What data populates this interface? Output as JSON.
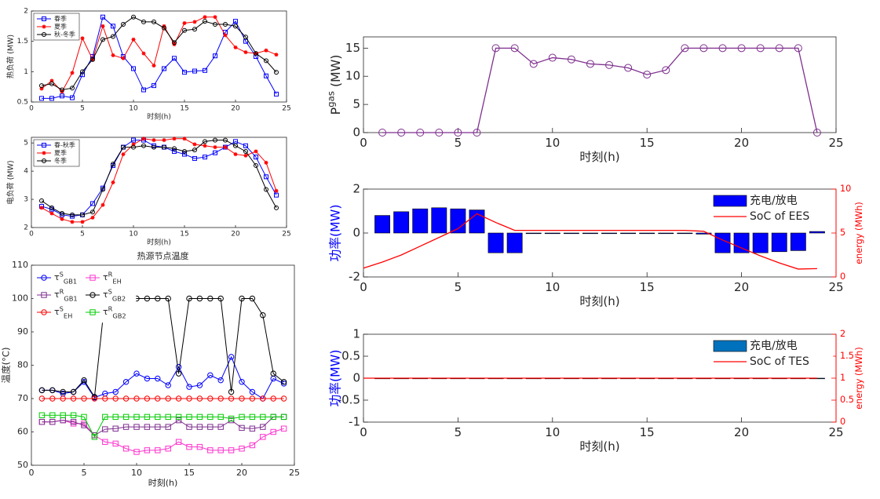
{
  "chart_data": [
    {
      "type": "line",
      "ylabel": "热负荷 (MW)",
      "xlabel": "时刻(h)",
      "xlim": [
        0,
        25
      ],
      "xticks": [
        0,
        5,
        10,
        15,
        20,
        25
      ],
      "ylim": [
        0.5,
        2
      ],
      "yticks": [
        0.5,
        1,
        1.5,
        2
      ],
      "legend": "upper left",
      "legend_columns": 1,
      "x": [
        1,
        2,
        3,
        4,
        5,
        6,
        7,
        8,
        9,
        10,
        11,
        12,
        13,
        14,
        15,
        16,
        17,
        18,
        19,
        20,
        21,
        22,
        23,
        24
      ],
      "series": [
        {
          "name": "春季",
          "color": "#0000ff",
          "marker": "square",
          "values": [
            0.56,
            0.56,
            0.6,
            0.57,
            0.95,
            1.25,
            1.9,
            1.75,
            1.25,
            1.05,
            0.7,
            0.77,
            1.05,
            1.22,
            0.99,
            1.01,
            1.02,
            1.26,
            1.65,
            1.83,
            1.5,
            1.25,
            0.93,
            0.63
          ]
        },
        {
          "name": "夏季",
          "color": "#ff0000",
          "marker": "star",
          "values": [
            0.72,
            0.85,
            0.67,
            0.98,
            1.55,
            1.2,
            1.75,
            1.27,
            1.22,
            1.53,
            1.3,
            1.1,
            1.75,
            1.45,
            1.8,
            1.82,
            1.9,
            1.9,
            1.6,
            1.4,
            1.32,
            1.3,
            1.35,
            1.28
          ]
        },
        {
          "name": "秋-冬季",
          "color": "#000000",
          "marker": "circle",
          "values": [
            0.77,
            0.8,
            0.7,
            0.73,
            1.0,
            1.2,
            1.53,
            1.58,
            1.78,
            1.9,
            1.82,
            1.82,
            1.72,
            1.48,
            1.68,
            1.7,
            1.83,
            1.78,
            1.78,
            1.75,
            1.57,
            1.3,
            1.18,
            0.99
          ]
        }
      ]
    },
    {
      "type": "line",
      "ylabel": "电负荷 (MW)",
      "xlabel": "时刻(h)",
      "xlim": [
        0,
        25
      ],
      "xticks": [
        0,
        5,
        10,
        15,
        20,
        25
      ],
      "ylim": [
        2,
        5.2
      ],
      "yticks": [
        2,
        3,
        4,
        5
      ],
      "legend": "upper left",
      "legend_columns": 1,
      "x": [
        1,
        2,
        3,
        4,
        5,
        6,
        7,
        8,
        9,
        10,
        11,
        12,
        13,
        14,
        15,
        16,
        17,
        18,
        19,
        20,
        21,
        22,
        23,
        24
      ],
      "series": [
        {
          "name": "春-秋季",
          "color": "#0000ff",
          "marker": "square",
          "values": [
            2.75,
            2.65,
            2.45,
            2.4,
            2.45,
            2.85,
            3.4,
            4.2,
            4.85,
            5.1,
            5.1,
            4.9,
            4.85,
            4.7,
            4.6,
            4.45,
            4.5,
            4.65,
            4.85,
            5.05,
            4.9,
            4.5,
            3.8,
            3.15
          ]
        },
        {
          "name": "夏季",
          "color": "#ff0000",
          "marker": "star",
          "values": [
            2.7,
            2.5,
            2.3,
            2.2,
            2.2,
            2.35,
            2.8,
            3.6,
            4.6,
            4.95,
            5.15,
            5.1,
            5.1,
            5.15,
            5.15,
            4.95,
            4.9,
            4.85,
            4.85,
            4.6,
            4.55,
            4.7,
            4.3,
            3.3
          ]
        },
        {
          "name": "冬季",
          "color": "#000000",
          "marker": "circle",
          "values": [
            2.95,
            2.7,
            2.5,
            2.45,
            2.45,
            2.55,
            3.35,
            4.25,
            4.85,
            4.85,
            4.9,
            4.85,
            4.85,
            4.8,
            4.7,
            4.75,
            5.05,
            5.1,
            5.1,
            4.9,
            4.7,
            4.2,
            3.35,
            2.7
          ]
        }
      ]
    },
    {
      "type": "line",
      "title": "热源节点温度",
      "ylabel": "温度(°C)",
      "xlabel": "时刻(h)",
      "xlim": [
        0,
        25
      ],
      "xticks": [
        0,
        5,
        10,
        15,
        20,
        25
      ],
      "ylim": [
        50,
        110
      ],
      "yticks": [
        50,
        60,
        70,
        80,
        90,
        100,
        110
      ],
      "legend": "upper left",
      "legend_columns": 2,
      "x": [
        1,
        2,
        3,
        4,
        5,
        6,
        7,
        8,
        9,
        10,
        11,
        12,
        13,
        14,
        15,
        16,
        17,
        18,
        19,
        20,
        21,
        22,
        23,
        24
      ],
      "series": [
        {
          "name": "τ^S_GB1",
          "color": "#0000ff",
          "marker": "circle",
          "values": [
            72.5,
            72.5,
            71.5,
            72,
            75,
            70.3,
            71.5,
            72,
            75,
            77.5,
            76,
            76,
            74,
            79.5,
            73.5,
            74,
            77,
            75.5,
            82.5,
            75,
            72,
            70,
            76,
            74.5
          ]
        },
        {
          "name": "τ^R_EH",
          "color": "#ff33cc",
          "marker": "square",
          "values": [
            63,
            63,
            63.5,
            62.5,
            62.5,
            59,
            57,
            56.5,
            55,
            54,
            54.5,
            54.5,
            55,
            57,
            55.5,
            55.5,
            54.5,
            54.5,
            54.5,
            55,
            56,
            58.5,
            60,
            61
          ]
        },
        {
          "name": "τ^R_GB1",
          "color": "#7e2f8e",
          "marker": "square",
          "values": [
            63,
            63,
            63.5,
            63,
            62,
            59,
            60.8,
            61,
            61.5,
            61.5,
            61.5,
            61.5,
            61.5,
            63.5,
            61.5,
            61.5,
            61.5,
            61.5,
            63.5,
            61.2,
            61,
            61.5,
            64.5,
            64.5
          ]
        },
        {
          "name": "τ^S_GB2",
          "color": "#000000",
          "marker": "circle",
          "values": [
            72.5,
            72.5,
            72,
            72,
            75.5,
            70.5,
            100,
            100,
            100,
            100,
            100,
            100,
            100,
            77.5,
            100,
            100,
            100,
            100,
            72,
            100,
            100,
            95,
            77.5,
            75
          ]
        },
        {
          "name": "τ^S_EH",
          "color": "#ff0000",
          "marker": "circle",
          "values": [
            70,
            70,
            70,
            70,
            70,
            70,
            70,
            70,
            70,
            70,
            70,
            70,
            70,
            70,
            70,
            70,
            70,
            70,
            70,
            70,
            70,
            70,
            70,
            70
          ]
        },
        {
          "name": "τ^R_GB2",
          "color": "#00cc00",
          "marker": "square",
          "values": [
            65,
            65,
            65,
            65,
            64.5,
            58.5,
            64.5,
            64.5,
            64.5,
            64.5,
            64.5,
            64.5,
            64.5,
            64.5,
            64.5,
            64.5,
            64.5,
            64.5,
            64,
            64.5,
            64.5,
            64.5,
            64.5,
            64.5
          ]
        }
      ]
    },
    {
      "type": "line",
      "ylabel": "P^gas (MW)",
      "xlabel": "时刻(h)",
      "xlim": [
        0,
        25
      ],
      "xticks": [
        0,
        5,
        10,
        15,
        20,
        25
      ],
      "ylim": [
        0,
        17
      ],
      "yticks": [
        0,
        5,
        10,
        15
      ],
      "x": [
        1,
        2,
        3,
        4,
        5,
        6,
        7,
        8,
        9,
        10,
        11,
        12,
        13,
        14,
        15,
        16,
        17,
        18,
        19,
        20,
        21,
        22,
        23,
        24
      ],
      "series": [
        {
          "color": "#7e2f8e",
          "marker": "circle",
          "values": [
            0,
            0,
            0,
            0,
            0,
            0,
            15,
            15,
            12.2,
            13.3,
            13,
            12.2,
            12,
            11.5,
            10.3,
            11.1,
            15,
            15,
            15,
            15,
            15,
            15,
            15,
            0
          ]
        }
      ]
    },
    {
      "type": "bar",
      "ylabel": "功率(MW)",
      "ylabel_color": "#0000ff",
      "xlabel": "时刻(h)",
      "y2label": "energy (MWh)",
      "y2_color": "#ff0000",
      "xlim": [
        0,
        25
      ],
      "xticks": [
        0,
        5,
        10,
        15,
        20,
        25
      ],
      "ylim": [
        -2,
        2
      ],
      "yticks": [
        -2,
        0,
        2
      ],
      "y2lim": [
        0,
        10
      ],
      "y2ticks": [
        0,
        5,
        10
      ],
      "legend": "upper right",
      "series": [
        {
          "name": "充电/放电",
          "type": "bar",
          "color": "#0000ff",
          "x": [
            1,
            2,
            3,
            4,
            5,
            6,
            7,
            8,
            9,
            10,
            11,
            12,
            13,
            14,
            15,
            16,
            17,
            18,
            19,
            20,
            21,
            22,
            23,
            24
          ],
          "values": [
            0.8,
            0.97,
            1.1,
            1.15,
            1.1,
            1.05,
            -0.9,
            -0.9,
            0,
            0,
            0,
            0,
            0,
            0,
            0,
            0,
            0,
            -0.05,
            -0.9,
            -0.9,
            -0.9,
            -0.85,
            -0.8,
            0.07
          ]
        },
        {
          "name": "SoC of EES",
          "type": "line",
          "axis": "y2",
          "color": "#ff0000",
          "x": [
            0,
            1,
            2,
            3,
            4,
            5,
            6,
            7,
            8,
            9,
            10,
            11,
            12,
            13,
            14,
            15,
            16,
            17,
            18,
            19,
            20,
            21,
            22,
            23,
            24
          ],
          "values": [
            1,
            1.7,
            2.5,
            3.5,
            4.5,
            5.5,
            7.2,
            6.2,
            5.3,
            5.3,
            5.3,
            5.3,
            5.3,
            5.3,
            5.3,
            5.3,
            5.3,
            5.3,
            5.2,
            4.2,
            3.3,
            2.4,
            1.6,
            0.9,
            0.95
          ]
        }
      ]
    },
    {
      "type": "bar",
      "ylabel": "功率(MW)",
      "ylabel_color": "#0000ff",
      "xlabel": "时刻(h)",
      "y2label": "energy (MWh)",
      "y2_color": "#ff0000",
      "xlim": [
        0,
        25
      ],
      "xticks": [
        0,
        5,
        10,
        15,
        20,
        25
      ],
      "ylim": [
        -1,
        1
      ],
      "yticks": [
        -1,
        -0.5,
        0,
        0.5,
        1
      ],
      "y2lim": [
        0,
        2
      ],
      "y2ticks": [
        0,
        0.5,
        1,
        1.5,
        2
      ],
      "legend": "upper right",
      "series": [
        {
          "name": "充电/放电",
          "type": "bar",
          "color": "#0072bd",
          "x": [
            1,
            2,
            3,
            4,
            5,
            6,
            7,
            8,
            9,
            10,
            11,
            12,
            13,
            14,
            15,
            16,
            17,
            18,
            19,
            20,
            21,
            22,
            23,
            24
          ],
          "values": [
            0,
            0,
            0,
            0,
            0,
            0,
            0,
            0,
            0,
            0,
            0,
            0,
            0,
            0,
            0,
            0,
            0,
            0,
            0,
            0,
            0,
            0,
            0,
            0
          ]
        },
        {
          "name": "SoC of TES",
          "type": "line",
          "axis": "y2",
          "color": "#ff0000",
          "x": [
            0,
            1,
            2,
            3,
            4,
            5,
            6,
            7,
            8,
            9,
            10,
            11,
            12,
            13,
            14,
            15,
            16,
            17,
            18,
            19,
            20,
            21,
            22,
            23,
            24
          ],
          "values": [
            1,
            1,
            1,
            1,
            1,
            1,
            1,
            1,
            1,
            1,
            1,
            1,
            1,
            1,
            1,
            1,
            1,
            1,
            1,
            1,
            1,
            1,
            1,
            1,
            1
          ]
        }
      ]
    }
  ]
}
